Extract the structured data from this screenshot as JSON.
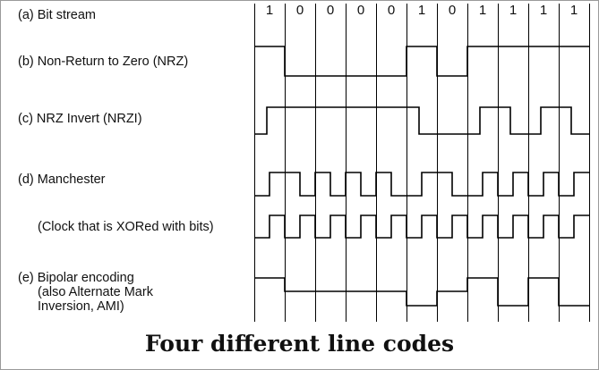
{
  "labels": {
    "a": "(a) Bit stream",
    "b": "(b) Non-Return to Zero (NRZ)",
    "c": "(c) NRZ Invert (NRZI)",
    "d": "(d) Manchester",
    "clock": "(Clock that is XORed with bits)",
    "e_line1": "(e) Bipolar encoding",
    "e_line2": "(also Alternate Mark",
    "e_line3": "Inversion, AMI)"
  },
  "bits": [
    "1",
    "0",
    "0",
    "0",
    "0",
    "1",
    "0",
    "1",
    "1",
    "1",
    "1"
  ],
  "caption": "Four different line codes"
}
